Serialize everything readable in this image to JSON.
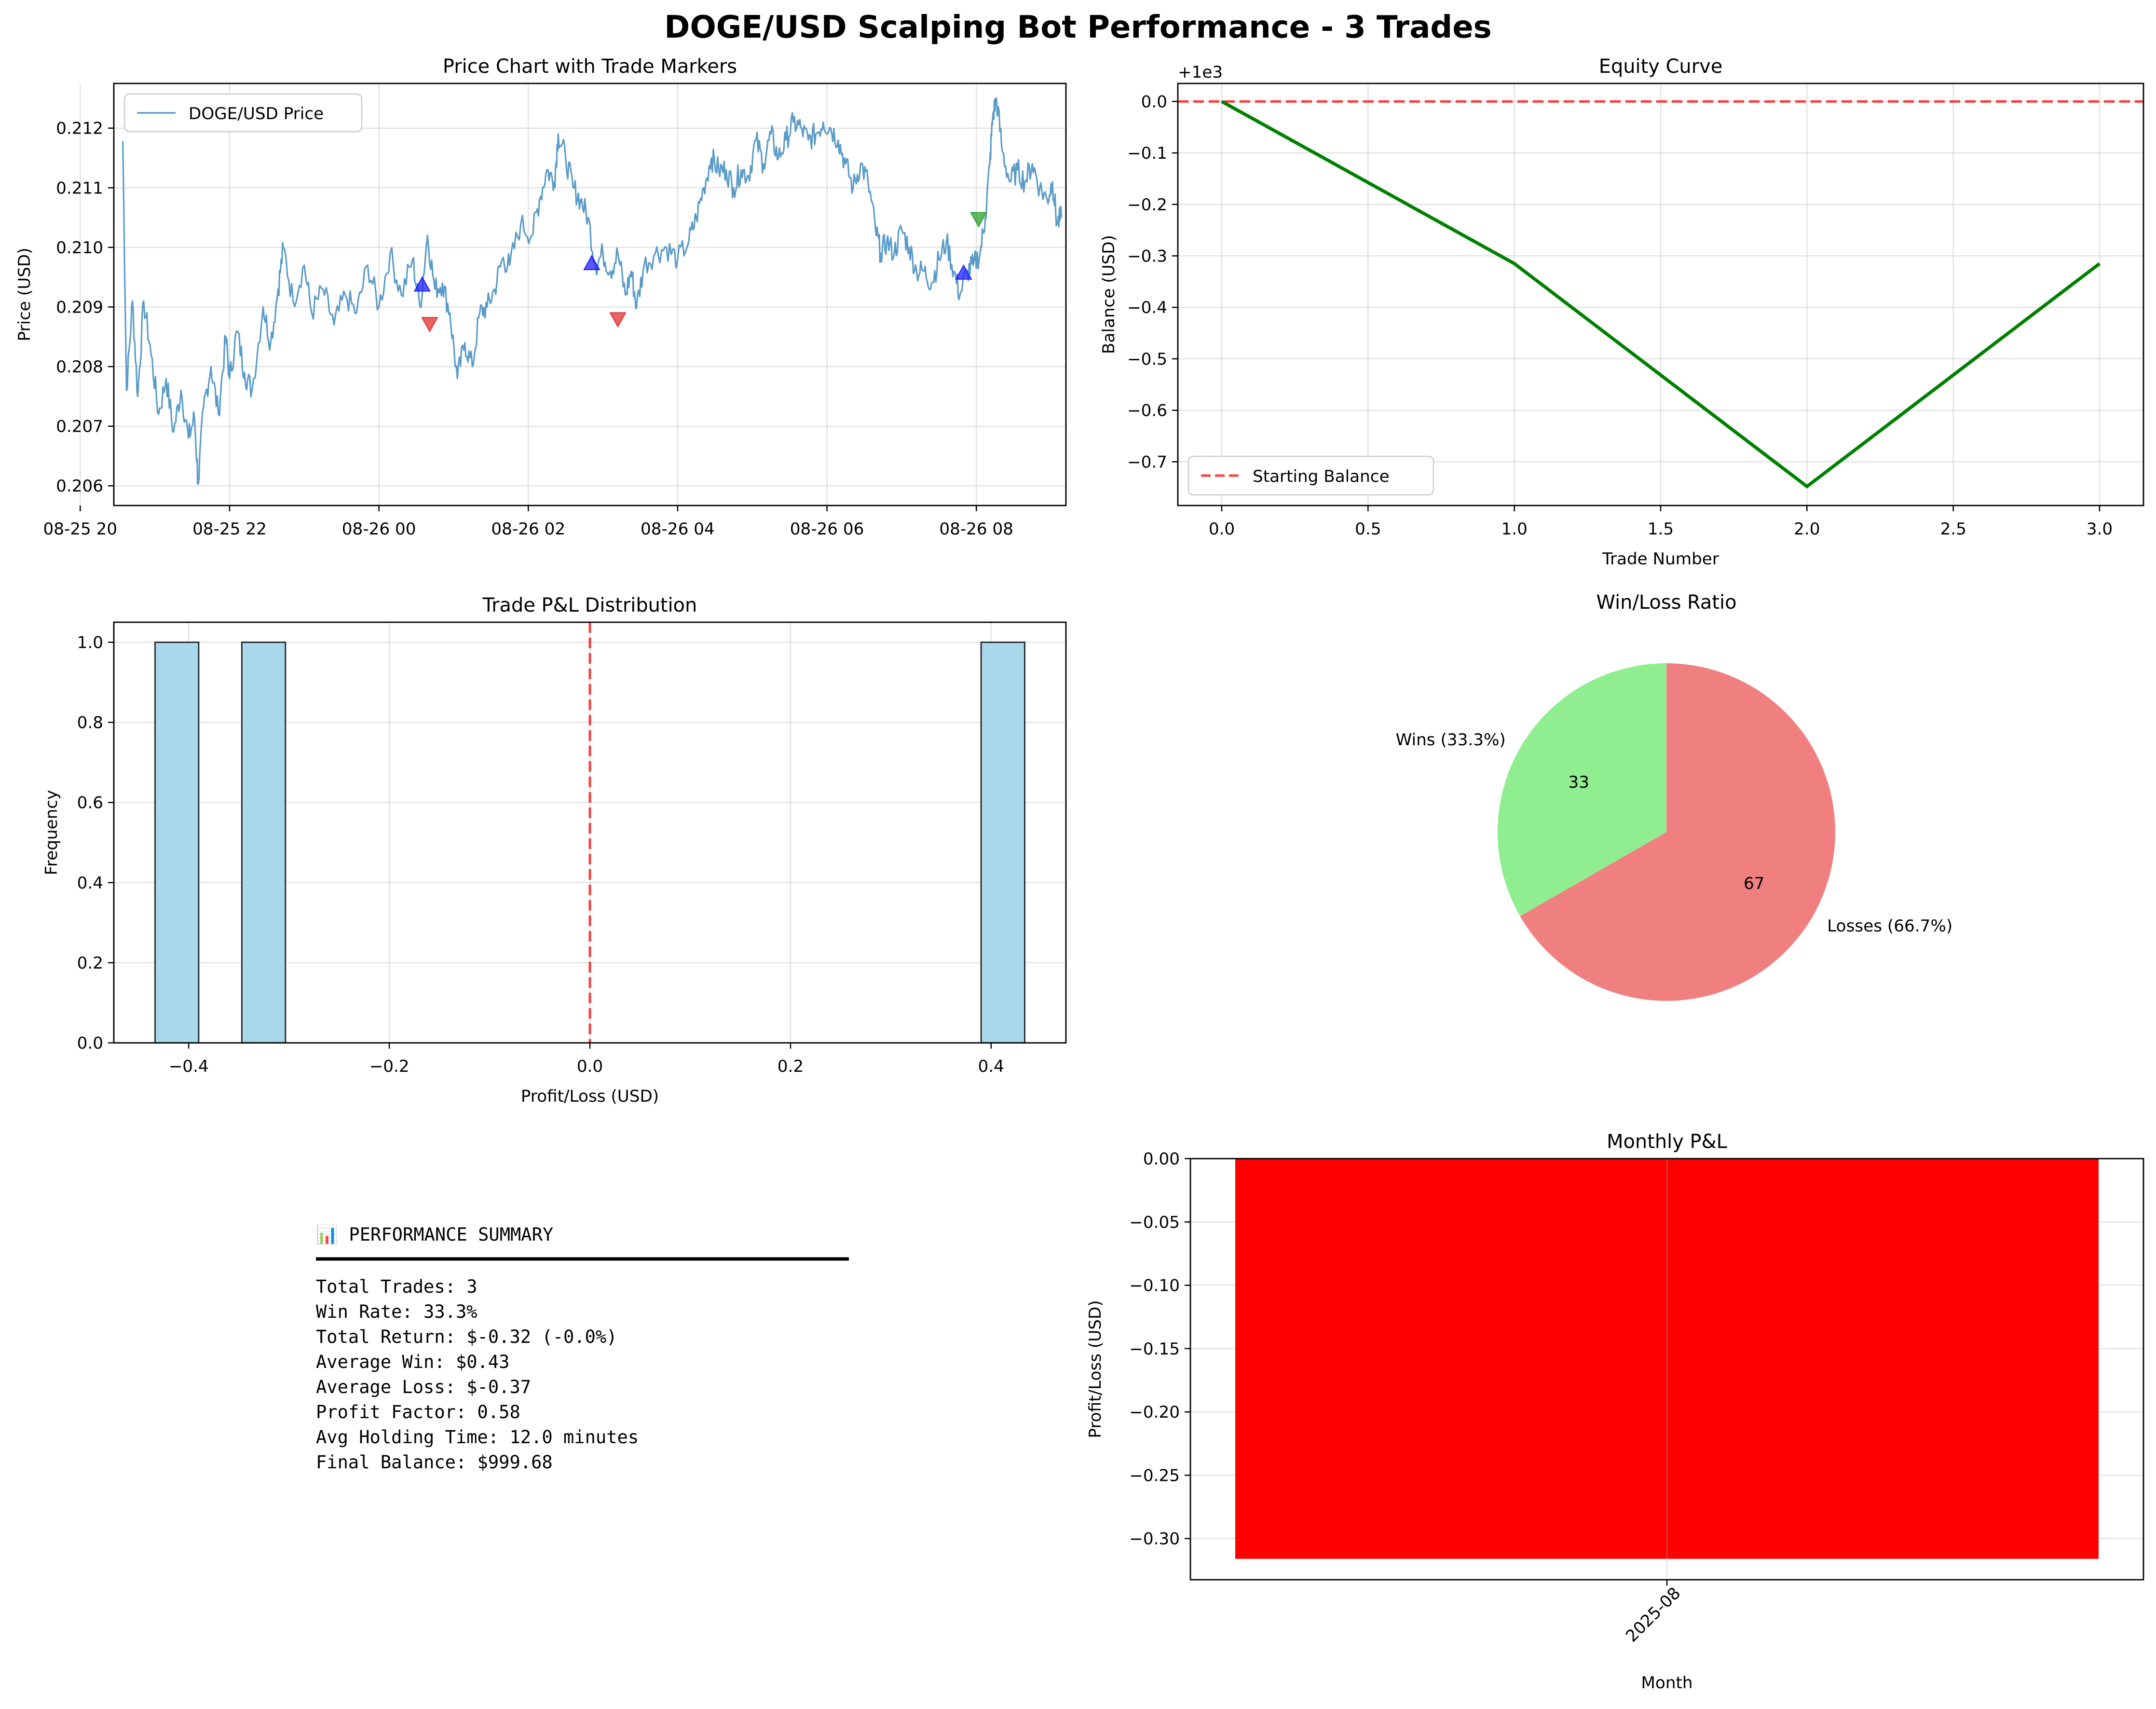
{
  "figure_title": "DOGE/USD Scalping Bot Performance - 3 Trades",
  "chart_data": [
    {
      "id": "price",
      "type": "line",
      "title": "Price Chart with Trade Markers",
      "xlabel": "",
      "ylabel": "Price (USD)",
      "x_ticks": [
        "08-25 20",
        "08-25 22",
        "08-26 00",
        "08-26 02",
        "08-26 04",
        "08-26 06",
        "08-26 08"
      ],
      "x_tick_hours": [
        20,
        22,
        24,
        26,
        28,
        30,
        32
      ],
      "xlim_hours": [
        20.45,
        33.2
      ],
      "y_ticks": [
        "0.206",
        "0.207",
        "0.208",
        "0.209",
        "0.210",
        "0.211",
        "0.212"
      ],
      "ylim": [
        0.20567,
        0.21275
      ],
      "grid": true,
      "legend": "top-left",
      "series": [
        {
          "name": "DOGE/USD Price",
          "color": "#5a9bc8",
          "anchors": [
            [
              20.57,
              0.21178
            ],
            [
              20.62,
              0.2076
            ],
            [
              20.7,
              0.2091
            ],
            [
              20.77,
              0.2075
            ],
            [
              20.85,
              0.2091
            ],
            [
              20.95,
              0.2082
            ],
            [
              21.05,
              0.2072
            ],
            [
              21.15,
              0.2078
            ],
            [
              21.25,
              0.2069
            ],
            [
              21.35,
              0.2076
            ],
            [
              21.45,
              0.2068
            ],
            [
              21.53,
              0.20715
            ],
            [
              21.58,
              0.20603
            ],
            [
              21.65,
              0.2073
            ],
            [
              21.75,
              0.208
            ],
            [
              21.85,
              0.2072
            ],
            [
              21.95,
              0.2085
            ],
            [
              22.0,
              0.2078
            ],
            [
              22.1,
              0.2086
            ],
            [
              22.2,
              0.2079
            ],
            [
              22.3,
              0.2076
            ],
            [
              22.45,
              0.209
            ],
            [
              22.55,
              0.2084
            ],
            [
              22.65,
              0.2093
            ],
            [
              22.72,
              0.21
            ],
            [
              22.85,
              0.2091
            ],
            [
              23.0,
              0.2097
            ],
            [
              23.1,
              0.2089
            ],
            [
              23.25,
              0.2093
            ],
            [
              23.4,
              0.2087
            ],
            [
              23.55,
              0.2092
            ],
            [
              23.7,
              0.2089
            ],
            [
              23.85,
              0.2097
            ],
            [
              24.0,
              0.209
            ],
            [
              24.15,
              0.2099
            ],
            [
              24.3,
              0.2092
            ],
            [
              24.45,
              0.2098
            ],
            [
              24.55,
              0.209
            ],
            [
              24.65,
              0.2102
            ],
            [
              24.75,
              0.2093
            ],
            [
              24.85,
              0.2094
            ],
            [
              24.95,
              0.2089
            ],
            [
              25.05,
              0.2078
            ],
            [
              25.15,
              0.2084
            ],
            [
              25.25,
              0.208
            ],
            [
              25.35,
              0.2089
            ],
            [
              25.45,
              0.209
            ],
            [
              25.55,
              0.2093
            ],
            [
              25.65,
              0.2098
            ],
            [
              25.75,
              0.2097
            ],
            [
              25.9,
              0.2104
            ],
            [
              26.05,
              0.2102
            ],
            [
              26.15,
              0.2108
            ],
            [
              26.25,
              0.2113
            ],
            [
              26.35,
              0.2111
            ],
            [
              26.4,
              0.2119
            ],
            [
              26.5,
              0.2115
            ],
            [
              26.6,
              0.211
            ],
            [
              26.7,
              0.2108
            ],
            [
              26.8,
              0.2105
            ],
            [
              26.9,
              0.2097
            ],
            [
              27.0,
              0.2099
            ],
            [
              27.1,
              0.2096
            ],
            [
              27.2,
              0.2099
            ],
            [
              27.3,
              0.2092
            ],
            [
              27.38,
              0.2096
            ],
            [
              27.45,
              0.209
            ],
            [
              27.55,
              0.2097
            ],
            [
              27.7,
              0.2099
            ],
            [
              27.85,
              0.21
            ],
            [
              28.0,
              0.2098
            ],
            [
              28.15,
              0.2101
            ],
            [
              28.25,
              0.2105
            ],
            [
              28.35,
              0.211
            ],
            [
              28.45,
              0.2115
            ],
            [
              28.55,
              0.2113
            ],
            [
              28.65,
              0.2113
            ],
            [
              28.75,
              0.211
            ],
            [
              28.85,
              0.2113
            ],
            [
              28.95,
              0.2112
            ],
            [
              29.05,
              0.2118
            ],
            [
              29.15,
              0.2114
            ],
            [
              29.25,
              0.2119
            ],
            [
              29.35,
              0.2115
            ],
            [
              29.45,
              0.2118
            ],
            [
              29.55,
              0.2121
            ],
            [
              29.65,
              0.212
            ],
            [
              29.75,
              0.2118
            ],
            [
              29.85,
              0.2119
            ],
            [
              29.95,
              0.2121
            ],
            [
              30.05,
              0.212
            ],
            [
              30.15,
              0.2118
            ],
            [
              30.25,
              0.2114
            ],
            [
              30.35,
              0.211
            ],
            [
              30.45,
              0.2114
            ],
            [
              30.55,
              0.2111
            ],
            [
              30.65,
              0.2103
            ],
            [
              30.72,
              0.2099
            ],
            [
              30.8,
              0.2101
            ],
            [
              30.9,
              0.2099
            ],
            [
              31.0,
              0.2103
            ],
            [
              31.1,
              0.21
            ],
            [
              31.2,
              0.2096
            ],
            [
              31.3,
              0.2096
            ],
            [
              31.4,
              0.2094
            ],
            [
              31.5,
              0.2098
            ],
            [
              31.6,
              0.2101
            ],
            [
              31.7,
              0.2096
            ],
            [
              31.78,
              0.2092
            ],
            [
              31.88,
              0.2096
            ],
            [
              31.96,
              0.2097
            ],
            [
              32.05,
              0.2099
            ],
            [
              32.12,
              0.2105
            ],
            [
              32.18,
              0.2114
            ],
            [
              32.22,
              0.2122
            ],
            [
              32.27,
              0.2125
            ],
            [
              32.35,
              0.2116
            ],
            [
              32.45,
              0.2111
            ],
            [
              32.55,
              0.2113
            ],
            [
              32.65,
              0.2111
            ],
            [
              32.75,
              0.2114
            ],
            [
              32.85,
              0.211
            ],
            [
              32.95,
              0.2108
            ],
            [
              33.02,
              0.2111
            ],
            [
              33.08,
              0.2104
            ],
            [
              33.14,
              0.2105
            ]
          ]
        }
      ],
      "markers": [
        {
          "kind": "entry",
          "hour": 24.58,
          "price": 0.20937,
          "color": "#1f1fff"
        },
        {
          "kind": "exit",
          "hour": 24.68,
          "price": 0.20872,
          "color": "#e03030"
        },
        {
          "kind": "entry",
          "hour": 26.85,
          "price": 0.20973,
          "color": "#1f1fff"
        },
        {
          "kind": "exit",
          "hour": 27.2,
          "price": 0.2088,
          "color": "#e03030"
        },
        {
          "kind": "entry",
          "hour": 31.83,
          "price": 0.20957,
          "color": "#1f1fff"
        },
        {
          "kind": "exit",
          "hour": 32.03,
          "price": 0.21048,
          "color": "#2ca02c"
        }
      ]
    },
    {
      "id": "equity",
      "type": "line",
      "title": "Equity Curve",
      "xlabel": "Trade Number",
      "ylabel": "Balance (USD)",
      "offset_label": "+1e3",
      "x_ticks": [
        "0.0",
        "0.5",
        "1.0",
        "1.5",
        "2.0",
        "2.5",
        "3.0"
      ],
      "xlim": [
        -0.15,
        3.15
      ],
      "y_ticks": [
        "0.0",
        "−0.1",
        "−0.2",
        "−0.3",
        "−0.4",
        "−0.5",
        "−0.6",
        "−0.7"
      ],
      "ylim": [
        -0.785,
        0.035
      ],
      "grid": true,
      "legend": "bottom-left",
      "x": [
        0,
        1,
        2,
        3
      ],
      "values": [
        0.0,
        -0.315,
        -0.748,
        -0.315
      ],
      "line_color": "#008000",
      "reference": {
        "name": "Starting Balance",
        "value": 0.0,
        "color": "#ff0000"
      }
    },
    {
      "id": "pnl_hist",
      "type": "bar",
      "title": "Trade P&L Distribution",
      "xlabel": "Profit/Loss (USD)",
      "ylabel": "Frequency",
      "x_ticks": [
        "−0.4",
        "−0.2",
        "0.0",
        "0.2",
        "0.4"
      ],
      "xlim": [
        -0.4746,
        0.4746
      ],
      "y_ticks": [
        "0.0",
        "0.2",
        "0.4",
        "0.6",
        "0.8",
        "1.0"
      ],
      "ylim": [
        0,
        1.05
      ],
      "grid": true,
      "bins": [
        {
          "x0": -0.4335,
          "x1": -0.39,
          "count": 1
        },
        {
          "x0": -0.347,
          "x1": -0.3035,
          "count": 1
        },
        {
          "x0": 0.39,
          "x1": 0.4335,
          "count": 1
        }
      ],
      "bar_color": "#a8d8ea",
      "reference": {
        "value": 0.0,
        "color": "#ff0000"
      }
    },
    {
      "id": "winloss",
      "type": "pie",
      "title": "Win/Loss Ratio",
      "slices": [
        {
          "label": "Wins (33.3%)",
          "value": 33.3,
          "pct_label": "33",
          "color": "#90ee90"
        },
        {
          "label": "Losses (66.7%)",
          "value": 66.7,
          "pct_label": "67",
          "color": "#f08080"
        }
      ],
      "start_angle_deg": 90
    },
    {
      "id": "monthly",
      "type": "bar",
      "title": "Monthly P&L",
      "xlabel": "Month",
      "ylabel": "Profit/Loss (USD)",
      "categories": [
        "2025-08"
      ],
      "values": [
        -0.316
      ],
      "y_ticks": [
        "0.00",
        "−0.05",
        "−0.10",
        "−0.15",
        "−0.20",
        "−0.25",
        "−0.30"
      ],
      "ylim": [
        -0.3325,
        0.0
      ],
      "grid": true,
      "bar_color": "#ff0000"
    }
  ],
  "summary": {
    "icon": "chart-icon",
    "heading": "📊 PERFORMANCE SUMMARY",
    "lines": [
      "Total Trades: 3",
      "Win Rate: 33.3%",
      "Total Return: $-0.32 (-0.0%)",
      "Average Win: $0.43",
      "Average Loss: $-0.37",
      "Profit Factor: 0.58",
      "Avg Holding Time: 12.0 minutes",
      "Final Balance: $999.68"
    ]
  }
}
